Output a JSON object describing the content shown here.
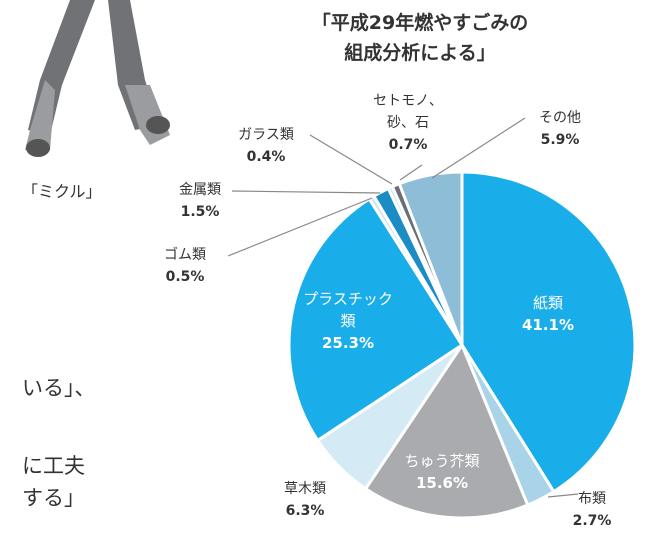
{
  "chart_data": {
    "type": "pie",
    "title": "「平成29年燃やすごみの\n組成分析による」",
    "categories": [
      "紙類",
      "布類",
      "ちゅう芥類",
      "草木類",
      "プラスチック\n類",
      "ゴム類",
      "金属類",
      "ガラス類",
      "セトモノ、\n砂、石",
      "その他"
    ],
    "values": [
      41.1,
      2.7,
      15.6,
      6.3,
      25.3,
      0.5,
      1.5,
      0.4,
      0.7,
      5.9
    ],
    "value_labels": [
      "41.1%",
      "2.7%",
      "15.6%",
      "6.3%",
      "25.3%",
      "0.5%",
      "1.5%",
      "0.4%",
      "0.7%",
      "5.9%"
    ],
    "colors": [
      "#19aeea",
      "#a9d3e8",
      "#a9abae",
      "#d4ebf6",
      "#19aeea",
      "#cfe6f2",
      "#1b8cc4",
      "#cfe6f2",
      "#6d6e71",
      "#8dbdd7"
    ]
  },
  "texts": {
    "caption": "「ミクル」",
    "body": [
      "いる」、",
      "に工夫",
      "する」"
    ]
  }
}
